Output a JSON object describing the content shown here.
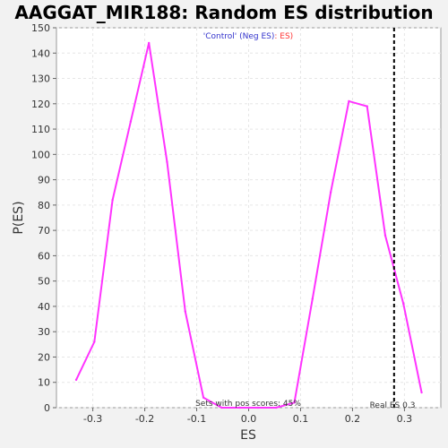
{
  "chart_data": {
    "type": "line",
    "title": "AAGGAT_MIR188: Random ES distribution",
    "xlabel": "ES",
    "ylabel": "P(ES)",
    "xlim": [
      -0.37,
      0.37
    ],
    "ylim": [
      0,
      150
    ],
    "x_ticks": [
      -0.3,
      -0.2,
      -0.1,
      0.0,
      0.1,
      0.2,
      0.3
    ],
    "x_tick_labels": [
      "-0.3",
      "-0.2",
      "-0.1",
      "0.0",
      "0.1",
      "0.2",
      "0.3"
    ],
    "y_ticks": [
      0,
      10,
      20,
      30,
      40,
      50,
      60,
      70,
      80,
      90,
      100,
      110,
      120,
      130,
      140,
      150
    ],
    "y_tick_labels": [
      "0",
      "10",
      "20",
      "30",
      "40",
      "50",
      "60",
      "70",
      "80",
      "90",
      "100",
      "110",
      "120",
      "130",
      "140",
      "150"
    ],
    "grid": true,
    "series": [
      {
        "color": "#ff33ff",
        "x": [
          -0.332,
          -0.297,
          -0.262,
          -0.227,
          -0.192,
          -0.157,
          -0.122,
          -0.087,
          -0.052,
          -0.017,
          0.018,
          0.053,
          0.088,
          0.123,
          0.158,
          0.193,
          0.228,
          0.263,
          0.298,
          0.333
        ],
        "y": [
          11,
          26,
          82,
          113,
          144,
          97,
          38,
          4,
          0,
          0,
          0,
          0,
          2,
          43,
          85,
          121,
          119,
          68,
          41,
          6
        ]
      }
    ],
    "real_es": 0.28,
    "real_es_label": "Real ES 0.3",
    "legend": {
      "prefix": "'Control' (Neg ES)",
      "suffix": ": ES)",
      "prefix_color": "#3333cc",
      "suffix_color": "#ff3333",
      "placement": "top-center"
    },
    "annotation": "Sets with pos scores: 45%"
  }
}
